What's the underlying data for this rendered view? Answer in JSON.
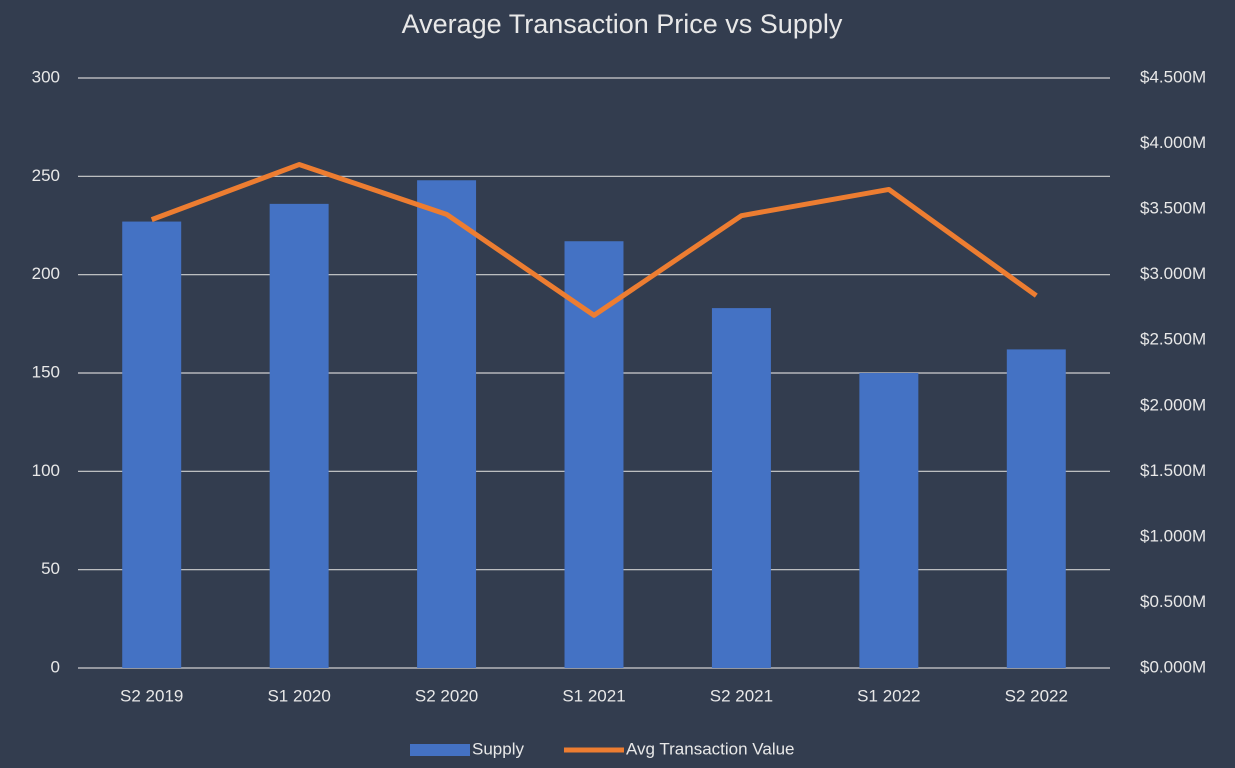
{
  "chart_data": {
    "type": "bar_line",
    "title": "Average Transaction Price vs Supply",
    "categories": [
      "S2 2019",
      "S1 2020",
      "S2 2020",
      "S1 2021",
      "S2 2021",
      "S1 2022",
      "S2 2022"
    ],
    "series": [
      {
        "name": "Supply",
        "type": "bar",
        "color": "#4472c4",
        "values": [
          227,
          236,
          248,
          217,
          183,
          150,
          162
        ]
      },
      {
        "name": "Avg Transaction Value",
        "type": "line",
        "axis": "y2",
        "color": "#ed7d31",
        "values": [
          3420000,
          3840000,
          3460000,
          2690000,
          3450000,
          3650000,
          2840000
        ]
      }
    ],
    "ylim": [
      0,
      300
    ],
    "yticks": [
      0,
      50,
      100,
      150,
      200,
      250,
      300
    ],
    "y2lim": [
      0,
      4500000
    ],
    "y2ticks": [
      {
        "value": 0,
        "label": "$0.000M"
      },
      {
        "value": 500000,
        "label": "$0.500M"
      },
      {
        "value": 1000000,
        "label": "$1.000M"
      },
      {
        "value": 1500000,
        "label": "$1.500M"
      },
      {
        "value": 2000000,
        "label": "$2.000M"
      },
      {
        "value": 2500000,
        "label": "$2.500M"
      },
      {
        "value": 3000000,
        "label": "$3.000M"
      },
      {
        "value": 3500000,
        "label": "$3.500M"
      },
      {
        "value": 4000000,
        "label": "$4.000M"
      },
      {
        "value": 4500000,
        "label": "$4.500M"
      }
    ],
    "grid": true,
    "legend": "bottom"
  }
}
